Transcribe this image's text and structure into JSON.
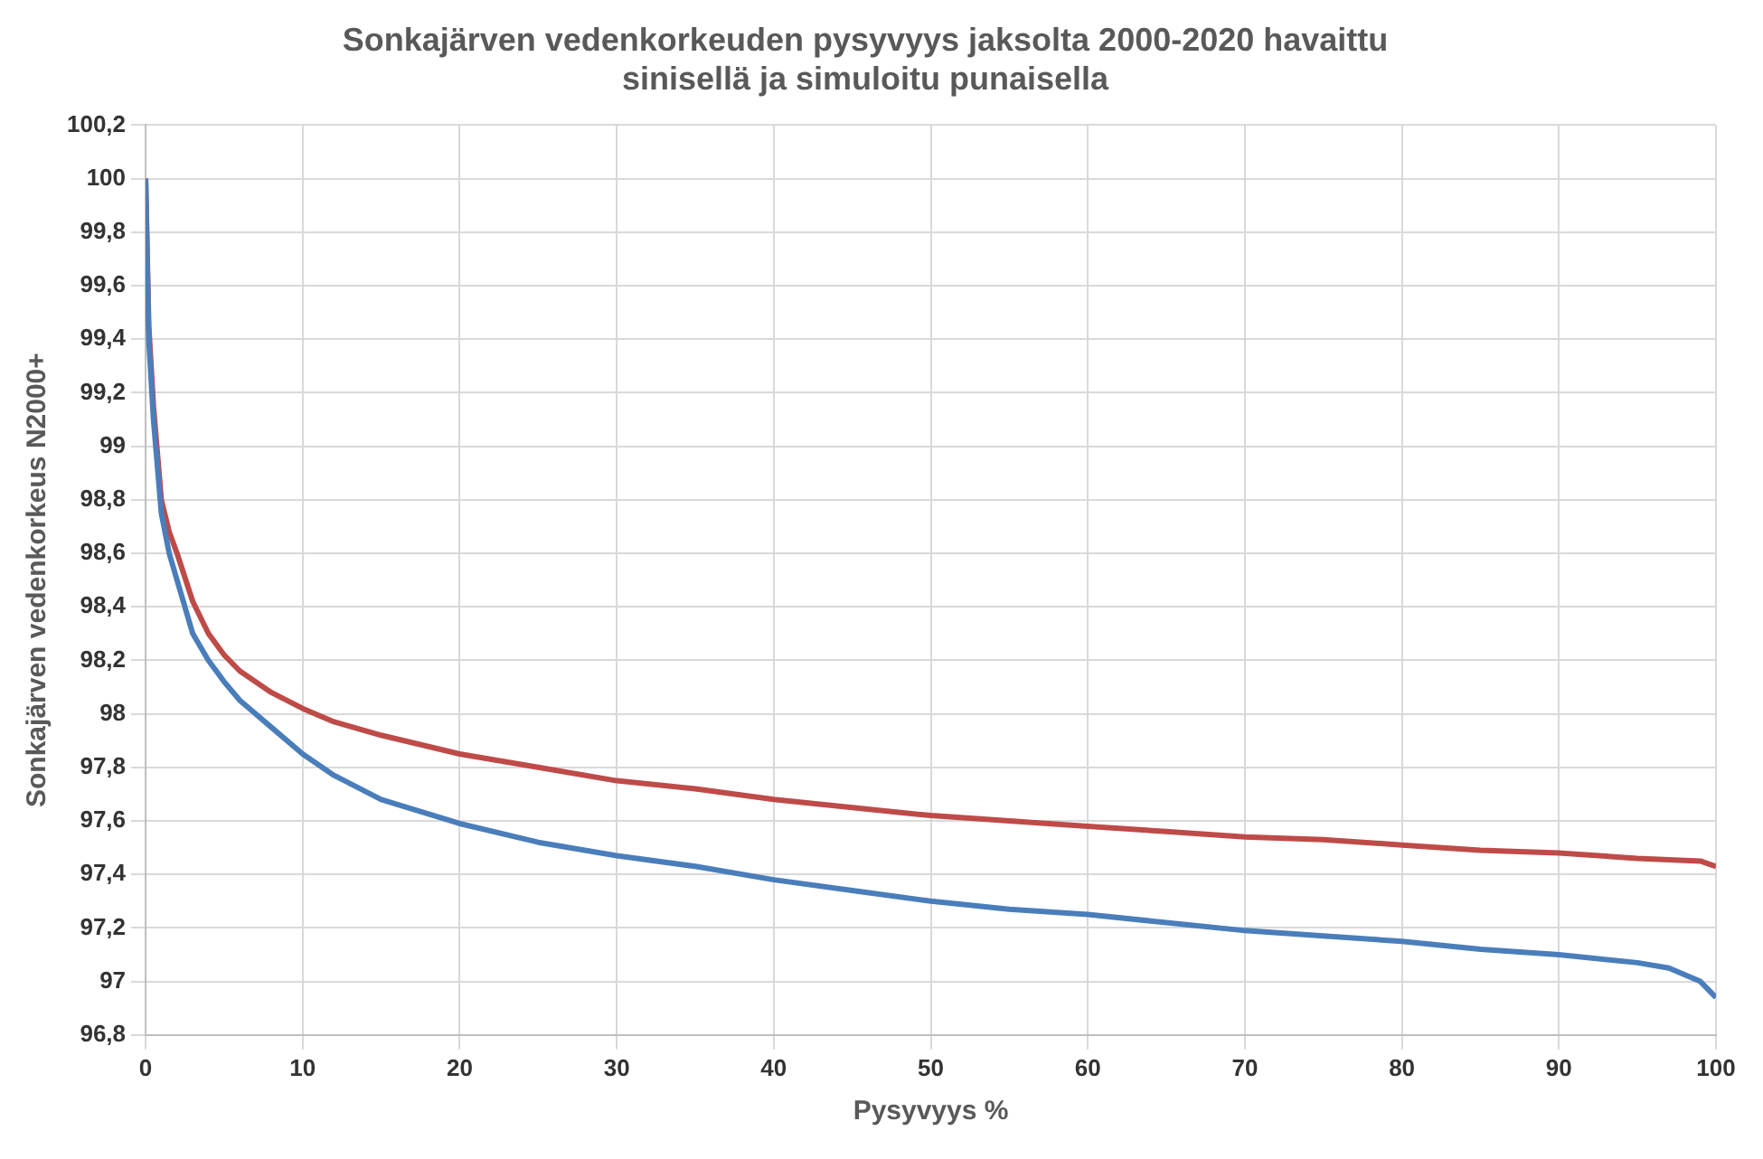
{
  "chart_data": {
    "type": "line",
    "title": "Sonkajärven vedenkorkeuden pysyvyys jaksolta 2000-2020 havaittu\nsinisellä ja simuloitu punaisella",
    "xlabel": "Pysyvyys %",
    "ylabel": "Sonkajärven vedenkorkeus N2000+",
    "series": [
      {
        "color": "#4a7ebb",
        "x": [
          0,
          0.2,
          0.5,
          1,
          1.5,
          2,
          3,
          4,
          5,
          6,
          8,
          10,
          12,
          15,
          20,
          25,
          30,
          35,
          40,
          45,
          50,
          55,
          60,
          65,
          70,
          75,
          80,
          85,
          90,
          95,
          97,
          99,
          100
        ],
        "values": [
          100,
          99.4,
          99.1,
          98.75,
          98.6,
          98.5,
          98.3,
          98.2,
          98.12,
          98.05,
          97.95,
          97.85,
          97.77,
          97.68,
          97.59,
          97.52,
          97.47,
          97.43,
          97.38,
          97.34,
          97.3,
          97.27,
          97.25,
          97.22,
          97.19,
          97.17,
          97.15,
          97.12,
          97.1,
          97.07,
          97.05,
          97,
          96.94
        ]
      },
      {
        "color": "#be4b48",
        "x": [
          0,
          0.2,
          0.5,
          1,
          1.5,
          2,
          3,
          4,
          5,
          6,
          8,
          10,
          12,
          15,
          20,
          25,
          30,
          35,
          40,
          45,
          50,
          55,
          60,
          65,
          70,
          75,
          80,
          85,
          90,
          95,
          99,
          100
        ],
        "values": [
          100,
          99.45,
          99.15,
          98.8,
          98.68,
          98.6,
          98.42,
          98.3,
          98.22,
          98.16,
          98.08,
          98.02,
          97.97,
          97.92,
          97.85,
          97.8,
          97.75,
          97.72,
          97.68,
          97.65,
          97.62,
          97.6,
          97.58,
          97.56,
          97.54,
          97.53,
          97.51,
          97.49,
          97.48,
          97.46,
          97.45,
          97.43
        ]
      }
    ],
    "xlim": [
      0,
      100
    ],
    "xticks": [
      0,
      10,
      20,
      30,
      40,
      50,
      60,
      70,
      80,
      90,
      100
    ],
    "ylim": [
      96.8,
      100.2
    ],
    "yticks": [
      {
        "value": 96.8,
        "label": "96,8"
      },
      97,
      {
        "value": 97.2,
        "label": "97,2"
      },
      {
        "value": 97.4,
        "label": "97,4"
      },
      {
        "value": 97.6,
        "label": "97,6"
      },
      {
        "value": 97.8,
        "label": "97,8"
      },
      98,
      {
        "value": 98.2,
        "label": "98,2"
      },
      {
        "value": 98.4,
        "label": "98,4"
      },
      {
        "value": 98.6,
        "label": "98,6"
      },
      {
        "value": 98.8,
        "label": "98,8"
      },
      99,
      {
        "value": 99.2,
        "label": "99,2"
      },
      {
        "value": 99.4,
        "label": "99,4"
      },
      {
        "value": 99.6,
        "label": "99,6"
      },
      {
        "value": 99.8,
        "label": "99,8"
      },
      100,
      {
        "value": 100.2,
        "label": "100,2"
      }
    ],
    "grid": true,
    "legend": false,
    "marker": "none",
    "line_style": "solid"
  }
}
